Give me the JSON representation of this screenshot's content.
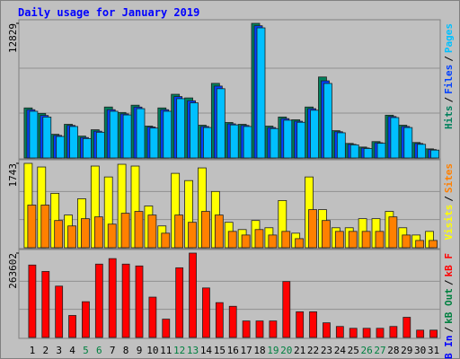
{
  "chart_data": [
    {
      "type": "bar",
      "title": "Daily usage for January 2019",
      "ylim": [
        0,
        12829
      ],
      "yticks": [
        12829
      ],
      "legend_separator": "/",
      "series": [
        {
          "name": "Hits",
          "color": "#00805c",
          "values": [
            4768,
            4248,
            2254,
            3208,
            2081,
            2688,
            4855,
            4335,
            5029,
            3035,
            4768,
            6069,
            5722,
            3121,
            7109,
            3381,
            3208,
            12829,
            3035,
            3902,
            3641,
            4855,
            7716,
            2601,
            1387,
            1040,
            1561,
            4075,
            3121,
            1474,
            867
          ]
        },
        {
          "name": "Files",
          "color": "#0040ff",
          "values": [
            4600,
            4050,
            2150,
            3100,
            1950,
            2550,
            4600,
            4200,
            4850,
            2950,
            4600,
            5850,
            5450,
            3000,
            6850,
            3250,
            3100,
            12600,
            2900,
            3750,
            3500,
            4700,
            7350,
            2500,
            1300,
            950,
            1450,
            3950,
            3000,
            1380,
            800
          ]
        },
        {
          "name": "Pages",
          "color": "#00c0ff",
          "values": [
            4450,
            3900,
            2050,
            3000,
            1850,
            2450,
            4450,
            4100,
            4700,
            2850,
            4450,
            5650,
            5250,
            2900,
            6600,
            3150,
            3000,
            12400,
            2800,
            3600,
            3400,
            4550,
            7100,
            2400,
            1250,
            900,
            1400,
            3850,
            2900,
            1300,
            750
          ]
        }
      ]
    },
    {
      "type": "bar",
      "ylim": [
        0,
        1743
      ],
      "yticks": [
        1743
      ],
      "legend_separator": "/",
      "series": [
        {
          "name": "Visits",
          "color": "#ffff00",
          "values": [
            1743,
            1668,
            1124,
            675,
            1012,
            1687,
            1462,
            1724,
            1687,
            862,
            450,
            1537,
            1387,
            1649,
            1162,
            525,
            375,
            562,
            412,
            975,
            300,
            1462,
            787,
            412,
            412,
            600,
            600,
            750,
            412,
            262,
            337
          ]
        },
        {
          "name": "Sites",
          "color": "#ff8000",
          "values": [
            881,
            881,
            562,
            450,
            600,
            637,
            487,
            712,
            750,
            675,
            300,
            675,
            525,
            750,
            675,
            337,
            262,
            375,
            262,
            337,
            187,
            787,
            562,
            337,
            337,
            337,
            337,
            637,
            262,
            150,
            150
          ]
        }
      ]
    },
    {
      "type": "bar",
      "ylim": [
        0,
        263602
      ],
      "yticks": [
        263602
      ],
      "legend_separator": "/",
      "legend_names": [
        {
          "name": "kB Out",
          "color": "#008040"
        },
        {
          "name": "kB In",
          "color": "#0000ff"
        }
      ],
      "series": [
        {
          "name": "kB F",
          "color": "#ff0000",
          "values": [
            226335,
            206280,
            160440,
            68760,
            111735,
            229200,
            246390,
            229200,
            223470,
            126060,
            57300,
            217740,
            263602,
            154710,
            108870,
            97410,
            51570,
            51570,
            51570,
            174765,
            80220,
            80220,
            45840,
            34380,
            28650,
            28650,
            28650,
            34380,
            63030,
            22920,
            22920
          ]
        }
      ],
      "categories": [
        "1",
        "2",
        "3",
        "4",
        "5",
        "6",
        "7",
        "8",
        "9",
        "10",
        "11",
        "12",
        "13",
        "14",
        "15",
        "16",
        "17",
        "18",
        "19",
        "20",
        "21",
        "22",
        "23",
        "24",
        "25",
        "26",
        "27",
        "28",
        "29",
        "30",
        "31"
      ],
      "category_colors": [
        "#000000",
        "#000000",
        "#000000",
        "#000000",
        "#008040",
        "#008040",
        "#000000",
        "#000000",
        "#000000",
        "#000000",
        "#000000",
        "#008040",
        "#008040",
        "#000000",
        "#000000",
        "#000000",
        "#000000",
        "#000000",
        "#008040",
        "#008040",
        "#000000",
        "#000000",
        "#000000",
        "#000000",
        "#000000",
        "#008040",
        "#008040",
        "#000000",
        "#000000",
        "#000000",
        "#000000"
      ]
    }
  ]
}
